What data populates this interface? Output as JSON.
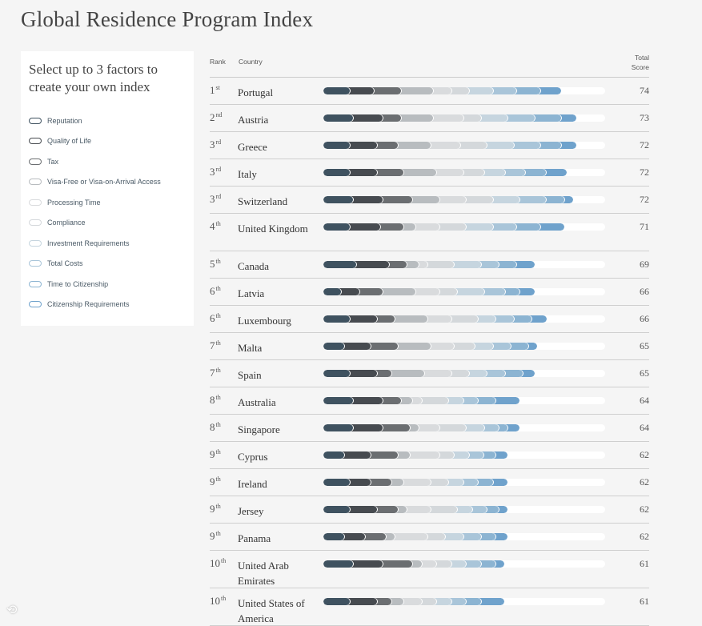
{
  "title": "Global Residence Program Index",
  "panel": {
    "heading": "Select up to 3 factors to create your own index",
    "factors": [
      {
        "label": "Reputation",
        "color": "#3f5260"
      },
      {
        "label": "Quality of Life",
        "color": "#474b50"
      },
      {
        "label": "Tax",
        "color": "#6b6e71"
      },
      {
        "label": "Visa-Free or Visa-on-Arrival Access",
        "color": "#b8bcbf"
      },
      {
        "label": "Processing Time",
        "color": "#d9dbdd"
      },
      {
        "label": "Compliance",
        "color": "#d4d8db"
      },
      {
        "label": "Investment Requirements",
        "color": "#c6d5df"
      },
      {
        "label": "Total Costs",
        "color": "#a9c5d9"
      },
      {
        "label": "Time to Citizenship",
        "color": "#8cb4d2"
      },
      {
        "label": "Citizenship Requirements",
        "color": "#6fa2cc"
      }
    ]
  },
  "table": {
    "headers": {
      "rank": "Rank",
      "country": "Country",
      "score_line1": "Total",
      "score_line2": "Score"
    },
    "rows": [
      {
        "rank": "1",
        "suffix": "st",
        "country": "Portugal",
        "score": "74",
        "segments": [
          9,
          8,
          9,
          11,
          6,
          6,
          8,
          8,
          8,
          7
        ]
      },
      {
        "rank": "2",
        "suffix": "nd",
        "country": "Austria",
        "score": "73",
        "segments": [
          10,
          10,
          6,
          11,
          10,
          6,
          9,
          9,
          9,
          5
        ]
      },
      {
        "rank": "3",
        "suffix": "rd",
        "country": "Greece",
        "score": "72",
        "segments": [
          9,
          9,
          7,
          11,
          10,
          9,
          9,
          9,
          7,
          5
        ]
      },
      {
        "rank": "3",
        "suffix": "rd",
        "country": "Italy",
        "score": "72",
        "segments": [
          9,
          9,
          9,
          11,
          9,
          7,
          7,
          7,
          7,
          7
        ]
      },
      {
        "rank": "3",
        "suffix": "rd",
        "country": "Switzerland",
        "score": "72",
        "segments": [
          10,
          10,
          10,
          9,
          9,
          9,
          9,
          9,
          6,
          3
        ]
      },
      {
        "rank": "4",
        "suffix": "th",
        "country": "United Kingdom",
        "score": "71",
        "segments": [
          9,
          10,
          8,
          4,
          8,
          9,
          9,
          8,
          8,
          8
        ]
      },
      {
        "rank": "5",
        "suffix": "th",
        "country": "Canada",
        "score": "69",
        "segments": [
          11,
          11,
          6,
          4,
          3,
          9,
          9,
          6,
          6,
          6
        ]
      },
      {
        "rank": "6",
        "suffix": "th",
        "country": "Latvia",
        "score": "66",
        "segments": [
          6,
          6,
          8,
          11,
          8,
          6,
          9,
          7,
          5,
          5
        ]
      },
      {
        "rank": "6",
        "suffix": "th",
        "country": "Luxembourg",
        "score": "66",
        "segments": [
          9,
          9,
          6,
          11,
          8,
          9,
          6,
          6,
          6,
          5
        ]
      },
      {
        "rank": "7",
        "suffix": "th",
        "country": "Malta",
        "score": "65",
        "segments": [
          7,
          9,
          9,
          11,
          8,
          7,
          6,
          6,
          6,
          3
        ]
      },
      {
        "rank": "7",
        "suffix": "th",
        "country": "Spain",
        "score": "65",
        "segments": [
          9,
          9,
          5,
          11,
          9,
          6,
          6,
          6,
          6,
          4
        ]
      },
      {
        "rank": "8",
        "suffix": "th",
        "country": "Australia",
        "score": "64",
        "segments": [
          10,
          10,
          6,
          4,
          3,
          9,
          5,
          5,
          6,
          8
        ]
      },
      {
        "rank": "8",
        "suffix": "th",
        "country": "Singapore",
        "score": "64",
        "segments": [
          10,
          10,
          9,
          3,
          7,
          9,
          6,
          5,
          3,
          4
        ]
      },
      {
        "rank": "9",
        "suffix": "th",
        "country": "Cyprus",
        "score": "62",
        "segments": [
          7,
          9,
          9,
          4,
          10,
          5,
          5,
          5,
          4,
          4
        ]
      },
      {
        "rank": "9",
        "suffix": "th",
        "country": "Ireland",
        "score": "62",
        "segments": [
          9,
          7,
          7,
          4,
          9,
          6,
          5,
          5,
          5,
          5
        ]
      },
      {
        "rank": "9",
        "suffix": "th",
        "country": "Jersey",
        "score": "62",
        "segments": [
          9,
          9,
          7,
          3,
          8,
          9,
          5,
          5,
          4,
          3
        ]
      },
      {
        "rank": "9",
        "suffix": "th",
        "country": "Panama",
        "score": "62",
        "segments": [
          7,
          7,
          7,
          3,
          11,
          6,
          6,
          6,
          5,
          4
        ]
      },
      {
        "rank": "10",
        "suffix": "th",
        "country": "United Arab Emirates",
        "score": "61",
        "segments": [
          10,
          10,
          10,
          3,
          5,
          5,
          5,
          5,
          5,
          3
        ]
      },
      {
        "rank": "10",
        "suffix": "th",
        "country": "United States of America",
        "score": "61",
        "segments": [
          9,
          9,
          5,
          4,
          6,
          5,
          5,
          5,
          5,
          8
        ]
      }
    ]
  }
}
